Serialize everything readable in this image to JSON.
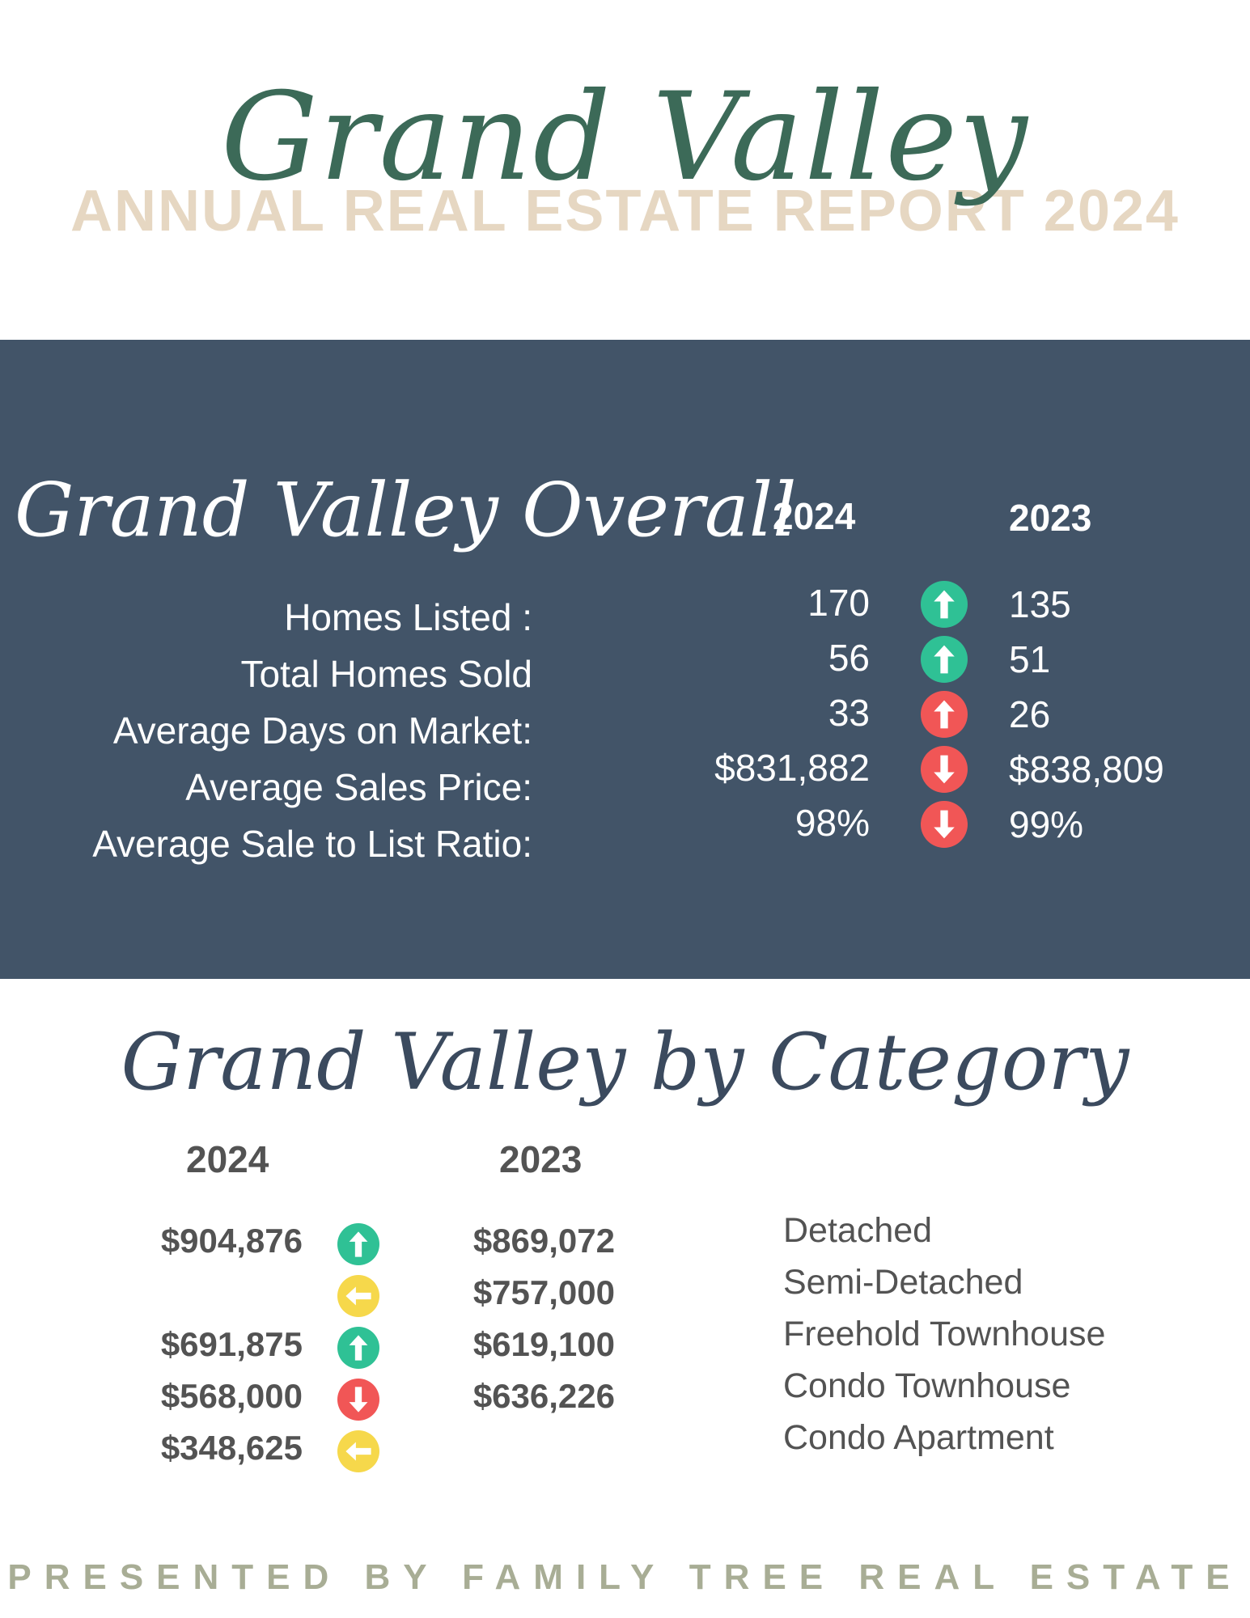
{
  "header": {
    "script_title": "Grand Valley",
    "title": "ANNUAL REAL ESTATE REPORT 2024"
  },
  "overall": {
    "title": "Grand Valley Overall",
    "col_2024": "2024",
    "col_2023": "2023",
    "rows": [
      {
        "label": "Homes Listed :",
        "v2024": "170",
        "v2023": "135",
        "trend": "up",
        "color": "#2fc195"
      },
      {
        "label": "Total Homes Sold",
        "v2024": "56",
        "v2023": "51",
        "trend": "up",
        "color": "#2fc195"
      },
      {
        "label": "Average Days on Market:",
        "v2024": "33",
        "v2023": "26",
        "trend": "up",
        "color": "#f15656"
      },
      {
        "label": "Average Sales Price:",
        "v2024": "$831,882",
        "v2023": "$838,809",
        "trend": "down",
        "color": "#f15656"
      },
      {
        "label": "Average Sale to List Ratio:",
        "v2024": "98%",
        "v2023": "99%",
        "trend": "down",
        "color": "#f15656"
      }
    ]
  },
  "category": {
    "title": "Grand Valley by Category",
    "col_2024": "2024",
    "col_2023": "2023",
    "rows": [
      {
        "label": "Detached",
        "v2024": "$904,876",
        "v2023": "$869,072",
        "trend": "up",
        "color": "#2fc195"
      },
      {
        "label": "Semi-Detached",
        "v2024": "",
        "v2023": "$757,000",
        "trend": "left",
        "color": "#f6d84b"
      },
      {
        "label": "Freehold Townhouse",
        "v2024": "$691,875",
        "v2023": "$619,100",
        "trend": "up",
        "color": "#2fc195"
      },
      {
        "label": "Condo Townhouse",
        "v2024": "$568,000",
        "v2023": "$636,226",
        "trend": "down",
        "color": "#f15656"
      },
      {
        "label": "Condo Apartment",
        "v2024": "$348,625",
        "v2023": "",
        "trend": "left",
        "color": "#f6d84b"
      }
    ]
  },
  "footer": {
    "text": "PRESENTED BY FAMILY TREE REAL ESTATE"
  }
}
